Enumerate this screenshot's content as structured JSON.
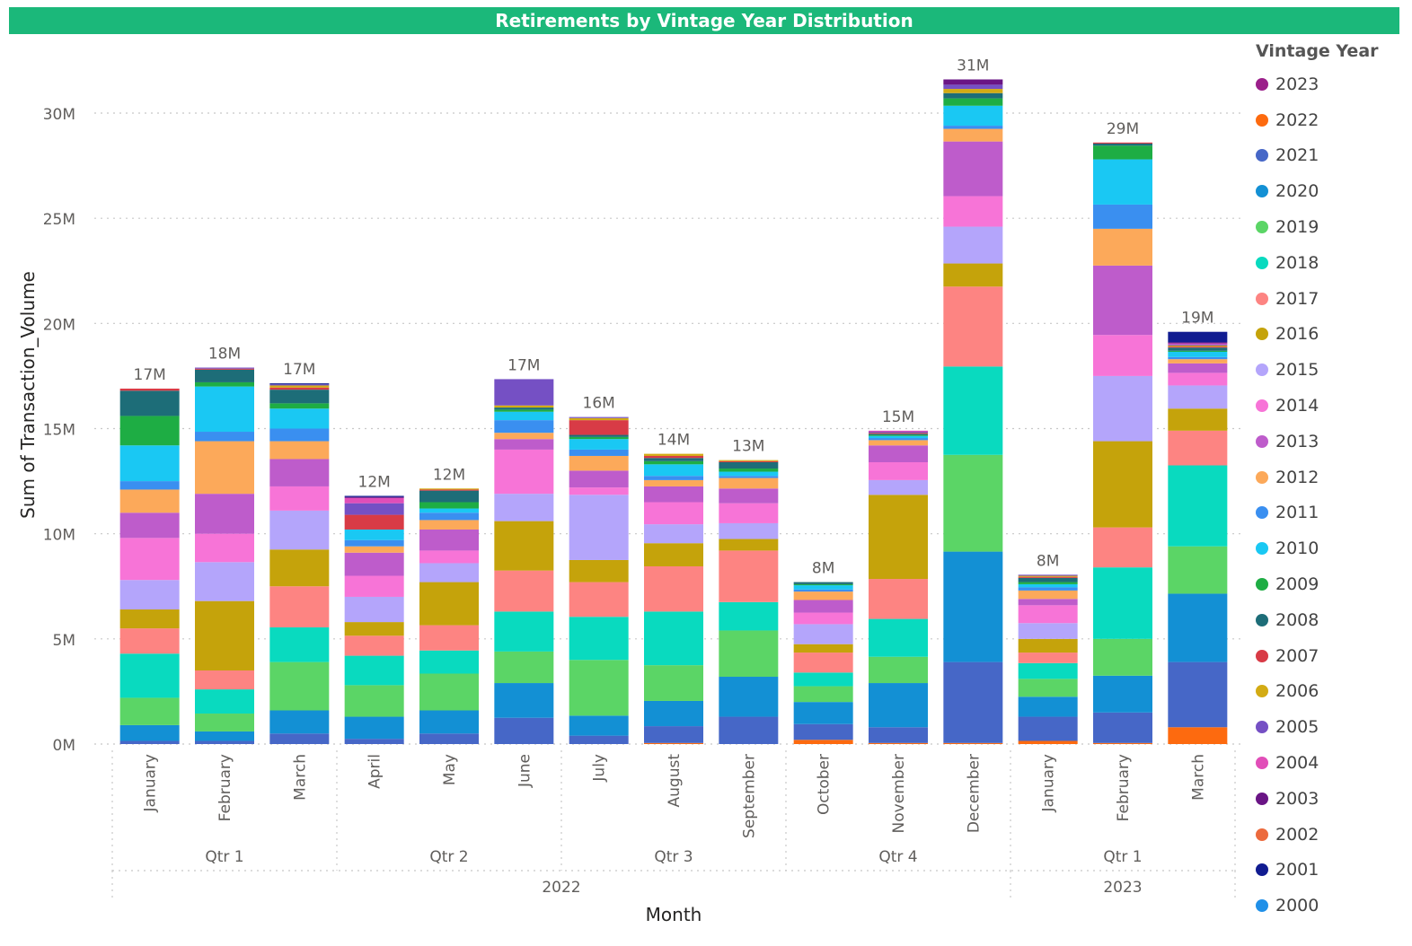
{
  "chart_data": {
    "type": "bar",
    "stacked": true,
    "title": "Retirements by Vintage Year Distribution",
    "xlabel": "Month",
    "ylabel": "Sum of Transaction_Volume",
    "ylim": [
      0,
      32
    ],
    "yticks": [
      "0M",
      "5M",
      "10M",
      "15M",
      "20M",
      "25M",
      "30M"
    ],
    "grid": true,
    "legend_position": "right",
    "legend_title": "Vintage Year",
    "legend_order": [
      "2023",
      "2022",
      "2021",
      "2020",
      "2019",
      "2018",
      "2017",
      "2016",
      "2015",
      "2014",
      "2013",
      "2012",
      "2011",
      "2010",
      "2009",
      "2008",
      "2007",
      "2006",
      "2005",
      "2004",
      "2003",
      "2002",
      "2001",
      "2000"
    ],
    "colors": {
      "2023": "#9b1f8a",
      "2022": "#fd6a0f",
      "2021": "#4667c7",
      "2020": "#1390d4",
      "2019": "#5bd566",
      "2018": "#09dabf",
      "2017": "#fd8482",
      "2016": "#c5a30b",
      "2015": "#b4a5fb",
      "2014": "#f774d7",
      "2013": "#be5ccb",
      "2012": "#fca95a",
      "2011": "#3a8ff0",
      "2010": "#1ac8f3",
      "2009": "#1ead44",
      "2008": "#1d6d78",
      "2007": "#d83b46",
      "2006": "#d3ab14",
      "2005": "#7550c4",
      "2004": "#e14eb8",
      "2003": "#6a1585",
      "2002": "#ec6a3d",
      "2001": "#111c91",
      "2000": "#2090e8"
    },
    "stack_order": [
      "2022",
      "2021",
      "2020",
      "2019",
      "2018",
      "2017",
      "2016",
      "2015",
      "2014",
      "2013",
      "2012",
      "2011",
      "2010",
      "2009",
      "2008",
      "2007",
      "2006",
      "2005",
      "2004",
      "2003",
      "2001",
      "2000"
    ],
    "categories": [
      "January",
      "February",
      "March",
      "April",
      "May",
      "June",
      "July",
      "August",
      "September",
      "October",
      "November",
      "December",
      "January",
      "February",
      "March"
    ],
    "quarters": [
      {
        "label": "Qtr 1",
        "from": 0,
        "to": 2
      },
      {
        "label": "Qtr 2",
        "from": 3,
        "to": 5
      },
      {
        "label": "Qtr 3",
        "from": 6,
        "to": 8
      },
      {
        "label": "Qtr 4",
        "from": 9,
        "to": 11
      },
      {
        "label": "Qtr 1",
        "from": 12,
        "to": 14
      }
    ],
    "years": [
      {
        "label": "2022",
        "from": 0,
        "to": 11
      },
      {
        "label": "2023",
        "from": 12,
        "to": 14
      }
    ],
    "totals_labels": [
      "17M",
      "18M",
      "17M",
      "12M",
      "12M",
      "17M",
      "16M",
      "14M",
      "13M",
      "8M",
      "15M",
      "31M",
      "8M",
      "29M",
      "19M"
    ],
    "bars": [
      {
        "2022": 0,
        "2021": 0.15,
        "2020": 0.75,
        "2019": 1.3,
        "2018": 2.1,
        "2017": 1.2,
        "2016": 0.9,
        "2015": 1.4,
        "2014": 2.0,
        "2013": 1.2,
        "2012": 1.1,
        "2011": 0.4,
        "2010": 1.7,
        "2009": 1.4,
        "2008": 1.2,
        "2007": 0.1
      },
      {
        "2022": 0,
        "2021": 0.15,
        "2020": 0.45,
        "2019": 0.85,
        "2018": 1.15,
        "2017": 0.9,
        "2016": 3.3,
        "2015": 1.85,
        "2014": 1.35,
        "2013": 1.9,
        "2012": 2.5,
        "2011": 0.45,
        "2010": 2.15,
        "2009": 0.2,
        "2008": 0.6,
        "2007": 0.05,
        "2005": 0.05
      },
      {
        "2022": 0,
        "2021": 0.5,
        "2020": 1.1,
        "2019": 2.3,
        "2018": 1.65,
        "2017": 1.95,
        "2016": 1.75,
        "2015": 1.85,
        "2014": 1.15,
        "2013": 1.3,
        "2012": 0.85,
        "2011": 0.6,
        "2010": 0.95,
        "2009": 0.25,
        "2008": 0.65,
        "2007": 0.1,
        "2006": 0.1,
        "2005": 0.05,
        "2001": 0.05
      },
      {
        "2022": 0,
        "2021": 0.25,
        "2020": 1.05,
        "2019": 1.5,
        "2018": 1.4,
        "2017": 0.95,
        "2016": 0.65,
        "2015": 1.2,
        "2014": 1.0,
        "2013": 1.1,
        "2012": 0.3,
        "2011": 0.3,
        "2010": 0.5,
        "2007": 0.7,
        "2005": 0.55,
        "2004": 0.25,
        "2003": 0.05,
        "2001": 0.05
      },
      {
        "2022": 0,
        "2021": 0.5,
        "2020": 1.1,
        "2019": 1.75,
        "2018": 1.1,
        "2017": 1.2,
        "2016": 2.05,
        "2015": 0.9,
        "2014": 0.6,
        "2013": 1.0,
        "2012": 0.45,
        "2011": 0.35,
        "2010": 0.2,
        "2009": 0.3,
        "2008": 0.55,
        "2007": 0.05,
        "2006": 0.05
      },
      {
        "2022": 0,
        "2021": 1.25,
        "2020": 1.65,
        "2019": 1.5,
        "2018": 1.9,
        "2017": 1.95,
        "2016": 2.35,
        "2015": 1.3,
        "2014": 2.1,
        "2013": 0.5,
        "2012": 0.3,
        "2011": 0.6,
        "2010": 0.4,
        "2009": 0.1,
        "2008": 0.1,
        "2006": 0.1,
        "2005": 1.25
      },
      {
        "2022": 0,
        "2021": 0.4,
        "2020": 0.95,
        "2019": 2.65,
        "2018": 2.05,
        "2017": 1.65,
        "2016": 1.05,
        "2015": 3.1,
        "2014": 0.35,
        "2013": 0.8,
        "2012": 0.7,
        "2011": 0.3,
        "2010": 0.5,
        "2009": 0.1,
        "2008": 0.1,
        "2007": 0.7,
        "2006": 0.1,
        "2005": 0.05
      },
      {
        "2022": 0.05,
        "2021": 0.8,
        "2020": 1.2,
        "2019": 1.7,
        "2018": 2.55,
        "2017": 2.15,
        "2016": 1.1,
        "2015": 0.9,
        "2014": 1.05,
        "2013": 0.75,
        "2012": 0.3,
        "2011": 0.2,
        "2010": 0.55,
        "2009": 0.15,
        "2008": 0.15,
        "2007": 0.1,
        "2006": 0.1
      },
      {
        "2022": 0,
        "2021": 1.3,
        "2020": 1.9,
        "2019": 2.2,
        "2018": 1.35,
        "2017": 2.45,
        "2016": 0.55,
        "2015": 0.75,
        "2014": 0.95,
        "2013": 0.7,
        "2012": 0.5,
        "2011": 0.1,
        "2010": 0.2,
        "2009": 0.15,
        "2008": 0.3,
        "2007": 0.05,
        "2006": 0.05
      },
      {
        "2022": 0.2,
        "2021": 0.75,
        "2020": 1.05,
        "2019": 0.75,
        "2018": 0.65,
        "2017": 0.95,
        "2016": 0.4,
        "2015": 0.95,
        "2014": 0.55,
        "2013": 0.6,
        "2012": 0.4,
        "2011": 0.1,
        "2010": 0.2,
        "2009": 0.05,
        "2008": 0.1
      },
      {
        "2022": 0.05,
        "2021": 0.75,
        "2020": 2.1,
        "2019": 1.25,
        "2018": 1.8,
        "2017": 1.9,
        "2016": 4.0,
        "2015": 0.7,
        "2014": 0.85,
        "2013": 0.8,
        "2012": 0.25,
        "2011": 0.1,
        "2010": 0.1,
        "2009": 0.05,
        "2008": 0.05,
        "2007": 0.05,
        "2005": 0.05,
        "2004": 0.05
      },
      {
        "2022": 0.05,
        "2021": 3.85,
        "2020": 5.25,
        "2019": 4.6,
        "2018": 4.2,
        "2017": 3.8,
        "2016": 1.1,
        "2015": 1.75,
        "2014": 1.45,
        "2013": 2.6,
        "2012": 0.6,
        "2011": 0.15,
        "2010": 0.95,
        "2009": 0.35,
        "2008": 0.25,
        "2006": 0.2,
        "2005": 0.2,
        "2003": 0.25
      },
      {
        "2022": 0.15,
        "2021": 1.15,
        "2020": 0.95,
        "2019": 0.85,
        "2018": 0.75,
        "2017": 0.5,
        "2016": 0.65,
        "2015": 0.75,
        "2014": 0.85,
        "2013": 0.3,
        "2012": 0.4,
        "2011": 0.15,
        "2010": 0.15,
        "2009": 0.1,
        "2008": 0.2,
        "2007": 0.05,
        "2006": 0.05,
        "2005": 0.05
      },
      {
        "2022": 0.05,
        "2021": 1.45,
        "2020": 1.75,
        "2019": 1.75,
        "2018": 3.4,
        "2017": 1.9,
        "2016": 4.1,
        "2015": 3.1,
        "2014": 1.95,
        "2013": 3.3,
        "2012": 1.75,
        "2011": 1.15,
        "2010": 2.15,
        "2009": 0.65,
        "2008": 0.1,
        "2007": 0.05
      },
      {
        "2022": 0.8,
        "2021": 3.1,
        "2020": 3.25,
        "2019": 2.25,
        "2018": 3.85,
        "2017": 1.65,
        "2016": 1.05,
        "2015": 1.1,
        "2014": 0.6,
        "2013": 0.45,
        "2012": 0.2,
        "2011": 0.1,
        "2010": 0.25,
        "2009": 0.05,
        "2008": 0.15,
        "2007": 0.05,
        "2006": 0.05,
        "2005": 0.05,
        "2004": 0.05,
        "2003": 0.05,
        "2001": 0.5
      }
    ]
  }
}
